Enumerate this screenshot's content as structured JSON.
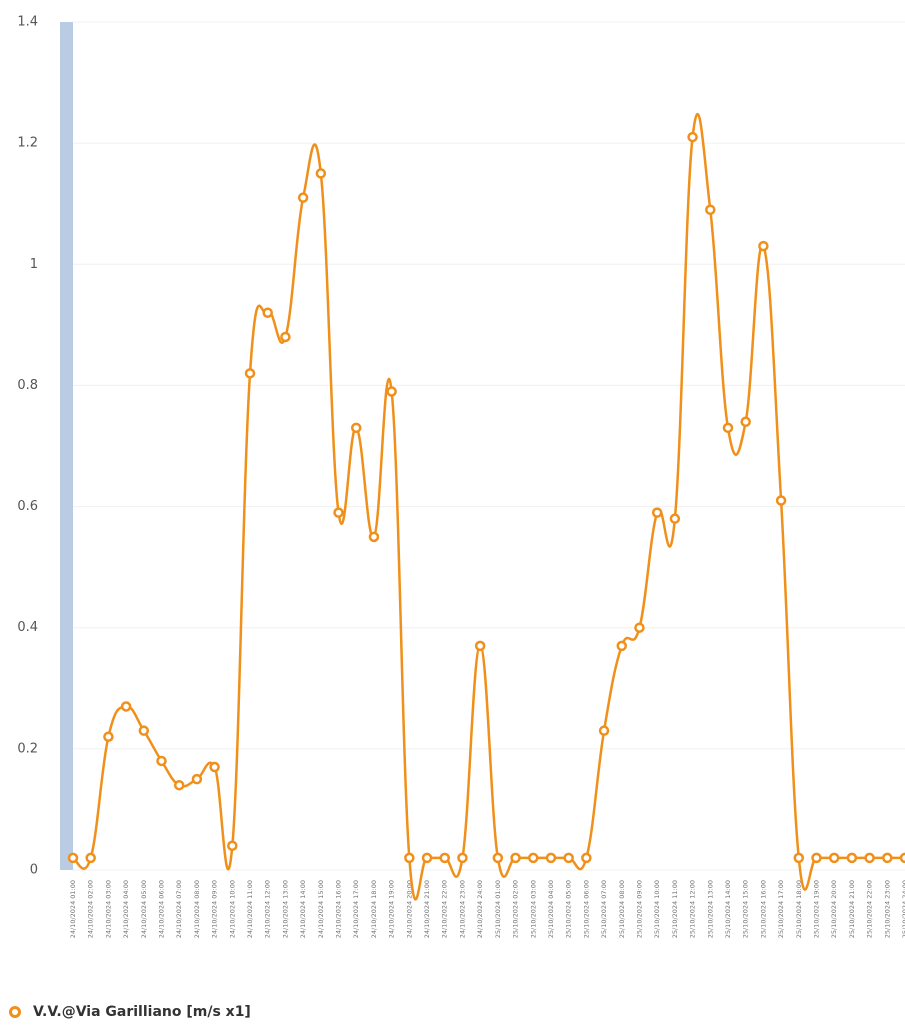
{
  "chart_data": {
    "type": "line",
    "categories": [
      "24/10/2024 01:00",
      "24/10/2024 02:00",
      "24/10/2024 03:00",
      "24/10/2024 04:00",
      "24/10/2024 05:00",
      "24/10/2024 06:00",
      "24/10/2024 07:00",
      "24/10/2024 08:00",
      "24/10/2024 09:00",
      "24/10/2024 10:00",
      "24/10/2024 11:00",
      "24/10/2024 12:00",
      "24/10/2024 13:00",
      "24/10/2024 14:00",
      "24/10/2024 15:00",
      "24/10/2024 16:00",
      "24/10/2024 17:00",
      "24/10/2024 18:00",
      "24/10/2024 19:00",
      "24/10/2024 20:00",
      "24/10/2024 21:00",
      "24/10/2024 22:00",
      "24/10/2024 23:00",
      "24/10/2024 24:00",
      "25/10/2024 01:00",
      "25/10/2024 02:00",
      "25/10/2024 03:00",
      "25/10/2024 04:00",
      "25/10/2024 05:00",
      "25/10/2024 06:00",
      "25/10/2024 07:00",
      "25/10/2024 08:00",
      "25/10/2024 09:00",
      "25/10/2024 10:00",
      "25/10/2024 11:00",
      "25/10/2024 12:00",
      "25/10/2024 13:00",
      "25/10/2024 14:00",
      "25/10/2024 15:00",
      "25/10/2024 16:00",
      "25/10/2024 17:00",
      "25/10/2024 18:00",
      "25/10/2024 19:00",
      "25/10/2024 20:00",
      "25/10/2024 21:00",
      "25/10/2024 22:00",
      "25/10/2024 23:00",
      "25/10/2024 24:00"
    ],
    "series": [
      {
        "name": "V.V.@Via Garilliano [m/s x1]",
        "color": "#f0901a",
        "values": [
          0.02,
          0.02,
          0.22,
          0.27,
          0.23,
          0.18,
          0.14,
          0.15,
          0.17,
          0.04,
          0.82,
          0.92,
          0.88,
          1.11,
          1.15,
          0.59,
          0.73,
          0.55,
          0.79,
          0.02,
          0.02,
          0.02,
          0.02,
          0.37,
          0.02,
          0.02,
          0.02,
          0.02,
          0.02,
          0.02,
          0.23,
          0.37,
          0.4,
          0.59,
          0.58,
          1.21,
          1.09,
          0.73,
          0.74,
          1.03,
          0.61,
          0.02,
          0.02,
          0.02,
          0.02,
          0.02,
          0.02,
          0.02
        ]
      }
    ],
    "ylim": [
      0,
      1.4
    ],
    "yticks": [
      0,
      0.2,
      0.4,
      0.6,
      0.8,
      1,
      1.2,
      1.4
    ],
    "grid": true
  }
}
